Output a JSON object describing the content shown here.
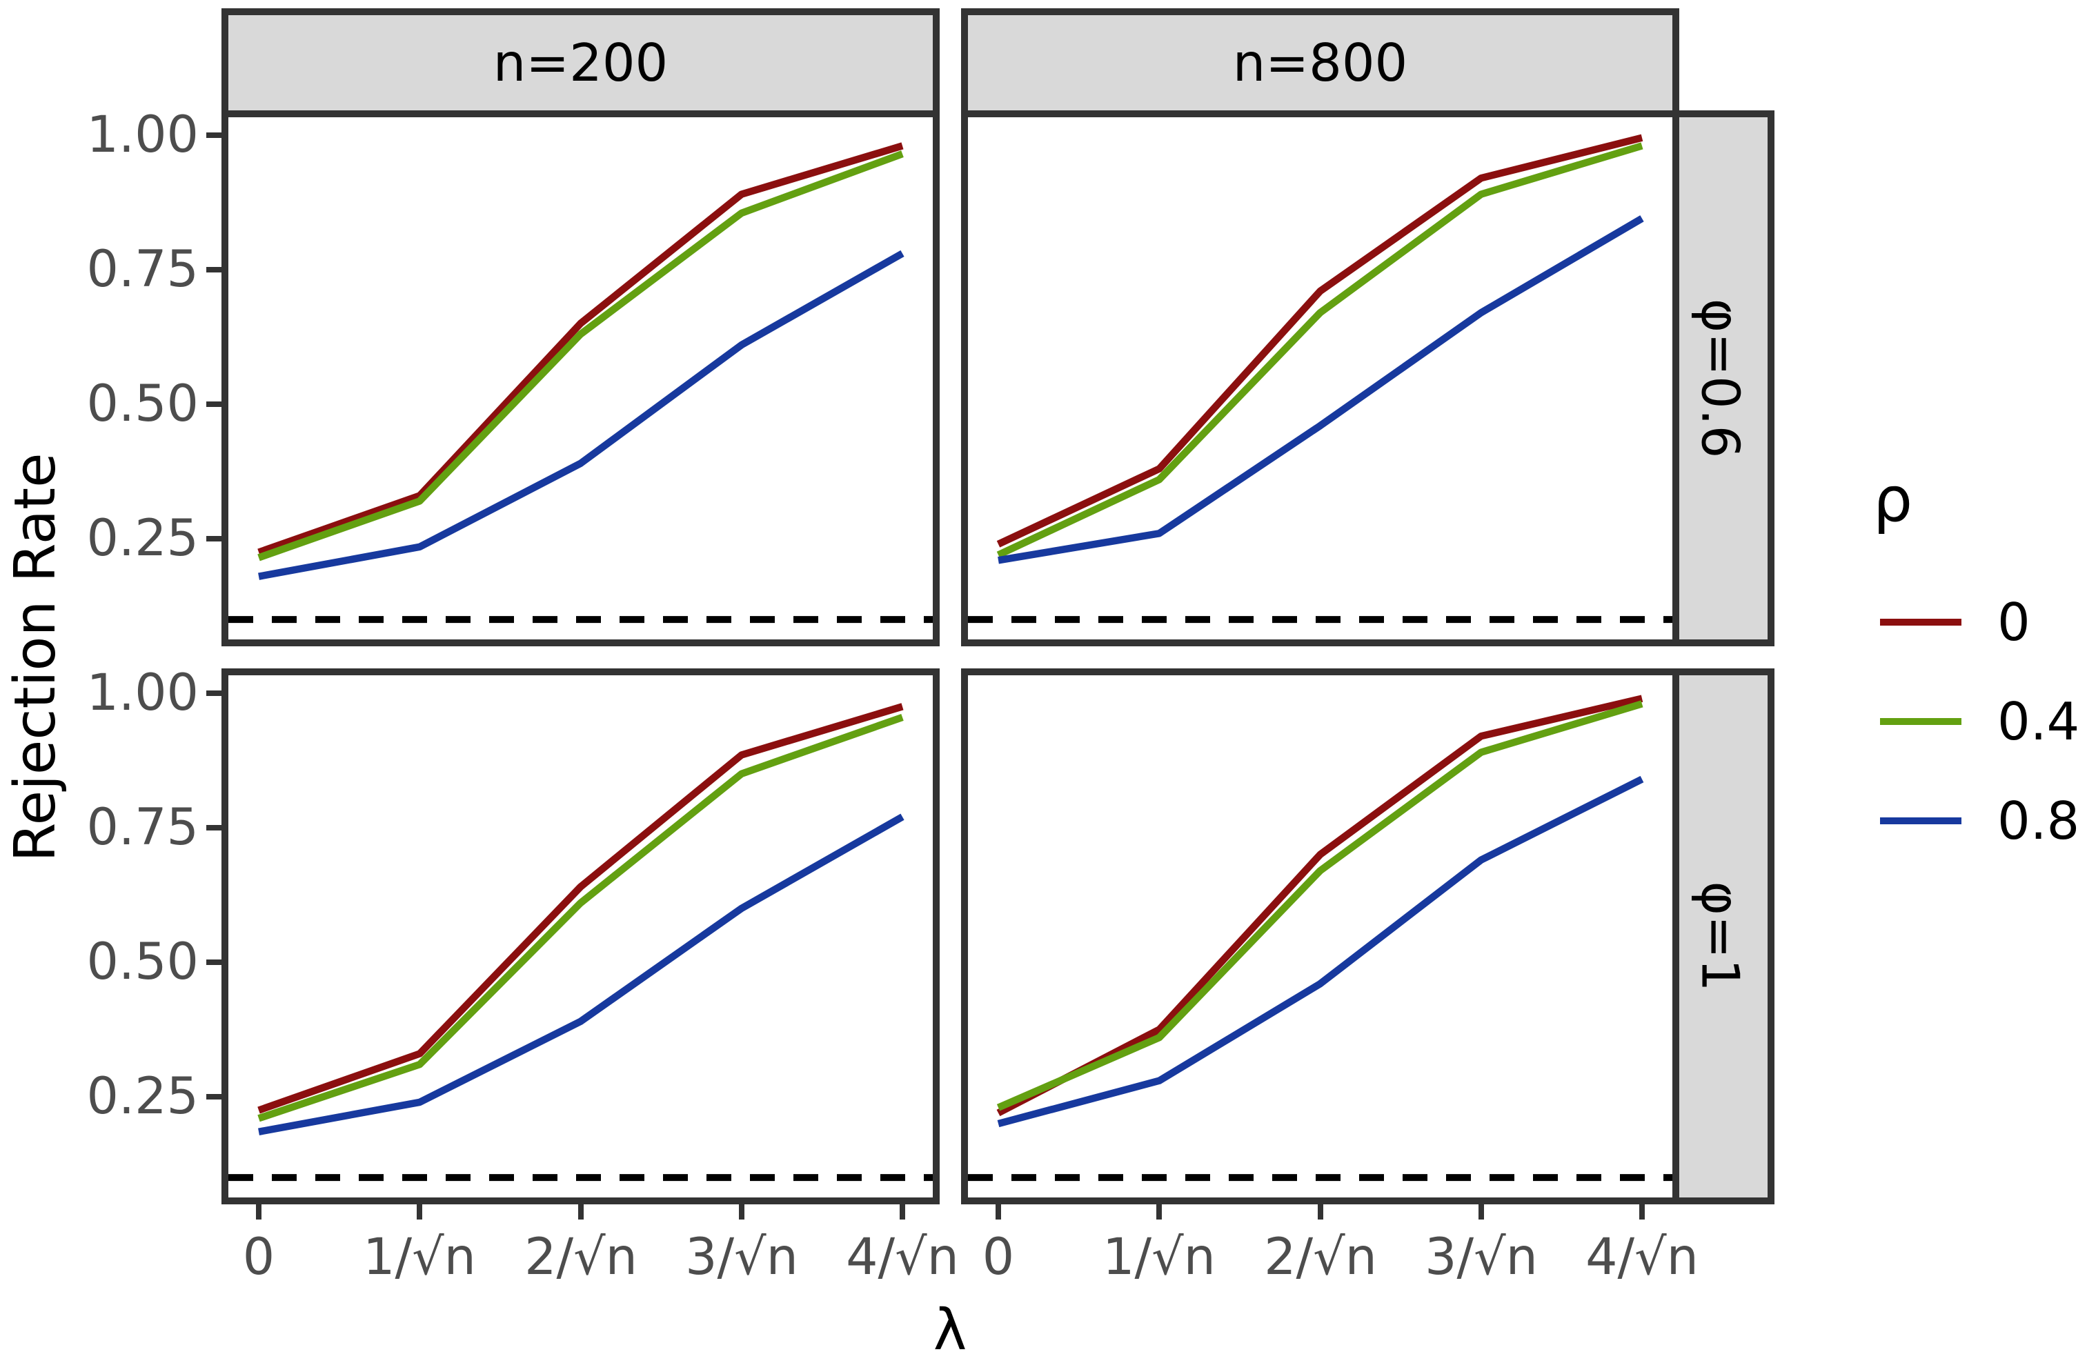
{
  "figure": {
    "y_axis_title": "Rejection Rate",
    "x_axis_title": "λ",
    "col_facets": [
      "n=200",
      "n=800"
    ],
    "row_facets": [
      "φ=0.6",
      "φ=1"
    ]
  },
  "axes": {
    "x_tick_labels": [
      "0",
      "1/√n",
      "2/√n",
      "3/√n",
      "4/√n"
    ],
    "y_tick_labels": [
      "1.00",
      "0.75",
      "0.50",
      "0.25"
    ]
  },
  "legend": {
    "title": "ρ",
    "position": "right",
    "items": [
      {
        "label": "0",
        "color": "#8B0F0F"
      },
      {
        "label": "0.4",
        "color": "#63A011"
      },
      {
        "label": "0.8",
        "color": "#17399E"
      }
    ]
  },
  "colors": {
    "strip_fill": "#D9D9D9",
    "panel_border": "#333333",
    "tick_text": "#4D4D4D",
    "reference_line": "#000000",
    "background": "#FFFFFF"
  },
  "chart_data": [
    {
      "type": "line",
      "facet": {
        "col": "n=200",
        "row": "φ=0.6"
      },
      "x_categories": [
        "0",
        "1/√n",
        "2/√n",
        "3/√n",
        "4/√n"
      ],
      "series": [
        {
          "name": "ρ=0",
          "color": "#8B0F0F",
          "values": [
            0.225,
            0.33,
            0.65,
            0.89,
            0.98
          ]
        },
        {
          "name": "ρ=0.4",
          "color": "#63A011",
          "values": [
            0.215,
            0.32,
            0.63,
            0.855,
            0.965
          ]
        },
        {
          "name": "ρ=0.8",
          "color": "#17399E",
          "values": [
            0.18,
            0.235,
            0.39,
            0.61,
            0.78
          ]
        }
      ],
      "reference_line": {
        "y": 0.1,
        "style": "dashed",
        "color": "#000000"
      },
      "ylim": [
        0.063,
        1.033
      ],
      "yticks": [
        0.25,
        0.5,
        0.75,
        1.0
      ],
      "ylabel": "Rejection Rate",
      "xlabel": "λ",
      "grid": false
    },
    {
      "type": "line",
      "facet": {
        "col": "n=800",
        "row": "φ=0.6"
      },
      "x_categories": [
        "0",
        "1/√n",
        "2/√n",
        "3/√n",
        "4/√n"
      ],
      "series": [
        {
          "name": "ρ=0",
          "color": "#8B0F0F",
          "values": [
            0.24,
            0.38,
            0.71,
            0.92,
            0.995
          ]
        },
        {
          "name": "ρ=0.4",
          "color": "#63A011",
          "values": [
            0.22,
            0.36,
            0.67,
            0.89,
            0.98
          ]
        },
        {
          "name": "ρ=0.8",
          "color": "#17399E",
          "values": [
            0.21,
            0.26,
            0.46,
            0.67,
            0.845
          ]
        }
      ],
      "reference_line": {
        "y": 0.1,
        "style": "dashed",
        "color": "#000000"
      },
      "ylim": [
        0.063,
        1.033
      ],
      "yticks": [
        0.25,
        0.5,
        0.75,
        1.0
      ],
      "ylabel": "Rejection Rate",
      "xlabel": "λ",
      "grid": false
    },
    {
      "type": "line",
      "facet": {
        "col": "n=200",
        "row": "φ=1"
      },
      "x_categories": [
        "0",
        "1/√n",
        "2/√n",
        "3/√n",
        "4/√n"
      ],
      "series": [
        {
          "name": "ρ=0",
          "color": "#8B0F0F",
          "values": [
            0.225,
            0.33,
            0.64,
            0.885,
            0.975
          ]
        },
        {
          "name": "ρ=0.4",
          "color": "#63A011",
          "values": [
            0.21,
            0.31,
            0.61,
            0.85,
            0.955
          ]
        },
        {
          "name": "ρ=0.8",
          "color": "#17399E",
          "values": [
            0.185,
            0.24,
            0.39,
            0.6,
            0.77
          ]
        }
      ],
      "reference_line": {
        "y": 0.1,
        "style": "dashed",
        "color": "#000000"
      },
      "ylim": [
        0.063,
        1.033
      ],
      "yticks": [
        0.25,
        0.5,
        0.75,
        1.0
      ],
      "ylabel": "Rejection Rate",
      "xlabel": "λ",
      "grid": false
    },
    {
      "type": "line",
      "facet": {
        "col": "n=800",
        "row": "φ=1"
      },
      "x_categories": [
        "0",
        "1/√n",
        "2/√n",
        "3/√n",
        "4/√n"
      ],
      "series": [
        {
          "name": "ρ=0",
          "color": "#8B0F0F",
          "values": [
            0.22,
            0.375,
            0.7,
            0.92,
            0.99
          ]
        },
        {
          "name": "ρ=0.4",
          "color": "#63A011",
          "values": [
            0.23,
            0.36,
            0.67,
            0.89,
            0.98
          ]
        },
        {
          "name": "ρ=0.8",
          "color": "#17399E",
          "values": [
            0.2,
            0.28,
            0.46,
            0.69,
            0.84
          ]
        }
      ],
      "reference_line": {
        "y": 0.1,
        "style": "dashed",
        "color": "#000000"
      },
      "ylim": [
        0.063,
        1.033
      ],
      "yticks": [
        0.25,
        0.5,
        0.75,
        1.0
      ],
      "ylabel": "Rejection Rate",
      "xlabel": "λ",
      "grid": false
    }
  ]
}
